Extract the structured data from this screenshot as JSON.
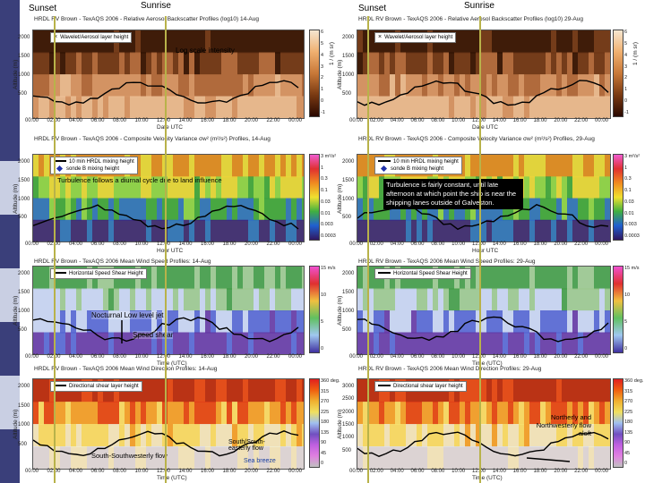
{
  "markers": {
    "sunset": "Sunset",
    "sunrise": "Sunrise"
  },
  "chart_data": [
    {
      "type": "heatmap",
      "title": "HRDL RV Brown - TexAQS 2006 - Relative Aerosol Backscatter Profiles (log10) 14-Aug",
      "legend": [
        "Wavelet/Aerosol layer height"
      ],
      "annotation": "Log scale intensity",
      "ylabel": "Altitude (m)",
      "xlabel": "Date UTC",
      "yticks": [
        "2000",
        "1500",
        "1000",
        "500"
      ],
      "xticks": [
        "00:00",
        "02:00",
        "04:00",
        "06:00",
        "08:00",
        "10:00",
        "12:00",
        "14:00",
        "16:00",
        "18:00",
        "20:00",
        "22:00",
        "00:00"
      ],
      "colorbar_ticks": [
        "6",
        "5",
        "4",
        "3",
        "2",
        "1",
        "0",
        "-1"
      ],
      "colorbar_unit": "1 / (m sr)"
    },
    {
      "type": "heatmap",
      "title": "HRDL RV Brown - TexAQS 2006 - Relative Aerosol Backscatter Profiles (log10) 29-Aug",
      "legend": [
        "Wavelet/Aerosol layer height"
      ],
      "ylabel": "Altitude (m)",
      "xlabel": "Date UTC",
      "yticks": [
        "2000",
        "1500",
        "1000",
        "500"
      ],
      "xticks": [
        "00:00",
        "02:00",
        "04:00",
        "06:00",
        "08:00",
        "10:00",
        "12:00",
        "14:00",
        "16:00",
        "18:00",
        "20:00",
        "22:00",
        "00:00"
      ],
      "colorbar_ticks": [
        "6",
        "5",
        "4",
        "3",
        "2",
        "1",
        "0",
        "-1"
      ],
      "colorbar_unit": "1 / (m sr)"
    },
    {
      "type": "heatmap",
      "title": "HRDL RV Brown - TexAQS 2006 - Composite Velocity Variance σw² (m²/s²) Profiles, 14-Aug",
      "legend": [
        "10 min HRDL mixing height",
        "sonde B mixing height"
      ],
      "annotation": "Turbulence follows a diurnal cycle due to land influence",
      "ylabel": "Altitude (m)",
      "xlabel": "Hour UTC",
      "yticks": [
        "2000",
        "1500",
        "1000",
        "500"
      ],
      "xticks": [
        "00:00",
        "02:00",
        "04:00",
        "06:00",
        "08:00",
        "10:00",
        "12:00",
        "14:00",
        "16:00",
        "18:00",
        "20:00",
        "22:00",
        "00:00"
      ],
      "colorbar_ticks": [
        "3 m²/s²",
        "1",
        "0.3",
        "0.1",
        "0.03",
        "0.01",
        "0.003",
        "0.0003"
      ]
    },
    {
      "type": "heatmap",
      "title": "HRDL RV Brown - TexAQS 2006 - Composite Velocity Variance σw² (m²/s²) Profiles, 29-Aug",
      "legend": [
        "10 min HRDL mixing height",
        "sonde B mixing height"
      ],
      "annotation": "Turbulence is fairly constant, until late afternoon at which point the ship is near the shipping lanes outside of Galveston.",
      "ylabel": "Altitude (m)",
      "xlabel": "Hour UTC",
      "yticks": [
        "2000",
        "1500",
        "1000",
        "500"
      ],
      "xticks": [
        "00:00",
        "02:00",
        "04:00",
        "06:00",
        "08:00",
        "10:00",
        "12:00",
        "14:00",
        "16:00",
        "18:00",
        "20:00",
        "22:00",
        "00:00"
      ],
      "colorbar_ticks": [
        "3 m²/s²",
        "1",
        "0.3",
        "0.1",
        "0.03",
        "0.01",
        "0.003",
        "0.0003"
      ]
    },
    {
      "type": "heatmap",
      "title": "HRDL RV Brown - TexAQS 2006 Mean Wind Speed Profiles: 14-Aug",
      "legend": [
        "Horizontal Speed Shear Height"
      ],
      "annotations": [
        "Nocturnal Low level jet",
        "Speed shear"
      ],
      "ylabel": "Altitude (m)",
      "xlabel": "Time (UTC)",
      "yticks": [
        "2000",
        "1500",
        "1000",
        "500"
      ],
      "xticks": [
        "00:00",
        "02:00",
        "04:00",
        "06:00",
        "08:00",
        "10:00",
        "12:00",
        "14:00",
        "16:00",
        "18:00",
        "20:00",
        "22:00",
        "00:00"
      ],
      "colorbar_ticks": [
        "15 m/s",
        "10",
        "5",
        "0"
      ]
    },
    {
      "type": "heatmap",
      "title": "HRDL RV Brown - TexAQS 2006 Mean Wind Speed Profiles: 29-Aug",
      "legend": [
        "Horizontal Speed Shear Height"
      ],
      "ylabel": "Altitude (m)",
      "xlabel": "Time (UTC)",
      "yticks": [
        "2000",
        "1500",
        "1000",
        "500"
      ],
      "xticks": [
        "00:00",
        "02:00",
        "04:00",
        "06:00",
        "08:00",
        "10:00",
        "12:00",
        "14:00",
        "16:00",
        "18:00",
        "20:00",
        "22:00",
        "00:00"
      ],
      "colorbar_ticks": [
        "15 m/s",
        "10",
        "5",
        "0"
      ]
    },
    {
      "type": "heatmap",
      "title": "HRDL RV Brown - TexAQS 2006 Mean Wind Direction Profiles: 14-Aug",
      "legend": [
        "Directional shear layer height"
      ],
      "annotations": [
        "South-Southwesterly flow",
        "South/South-easterly flow",
        "Sea breeze"
      ],
      "ylabel": "Altitude (m)",
      "xlabel": "Time (UTC)",
      "yticks": [
        "2000",
        "1500",
        "1000",
        "500"
      ],
      "xticks": [
        "00:00",
        "02:00",
        "04:00",
        "06:00",
        "08:00",
        "10:00",
        "12:00",
        "14:00",
        "16:00",
        "18:00",
        "20:00",
        "22:00",
        "00:00"
      ],
      "colorbar_ticks": [
        "360 deg.",
        "315",
        "270",
        "225",
        "180",
        "135",
        "90",
        "45",
        "0"
      ]
    },
    {
      "type": "heatmap",
      "title": "HRDL RV Brown - TexAQS 2006 Mean Wind Direction Profiles: 29-Aug",
      "legend": [
        "Directional shear layer height"
      ],
      "annotations": [
        "Northerly and Northwesterly flow aloft"
      ],
      "ylabel": "Altitude (m)",
      "xlabel": "Time (UTC)",
      "yticks": [
        "3000",
        "2500",
        "2000",
        "1500",
        "1000",
        "500"
      ],
      "xticks": [
        "00:00",
        "02:00",
        "04:00",
        "06:00",
        "08:00",
        "10:00",
        "12:00",
        "14:00",
        "16:00",
        "18:00",
        "20:00",
        "22:00",
        "00:00"
      ],
      "colorbar_ticks": [
        "360 deg.",
        "315",
        "270",
        "225",
        "180",
        "135",
        "90",
        "45",
        "0"
      ]
    }
  ]
}
